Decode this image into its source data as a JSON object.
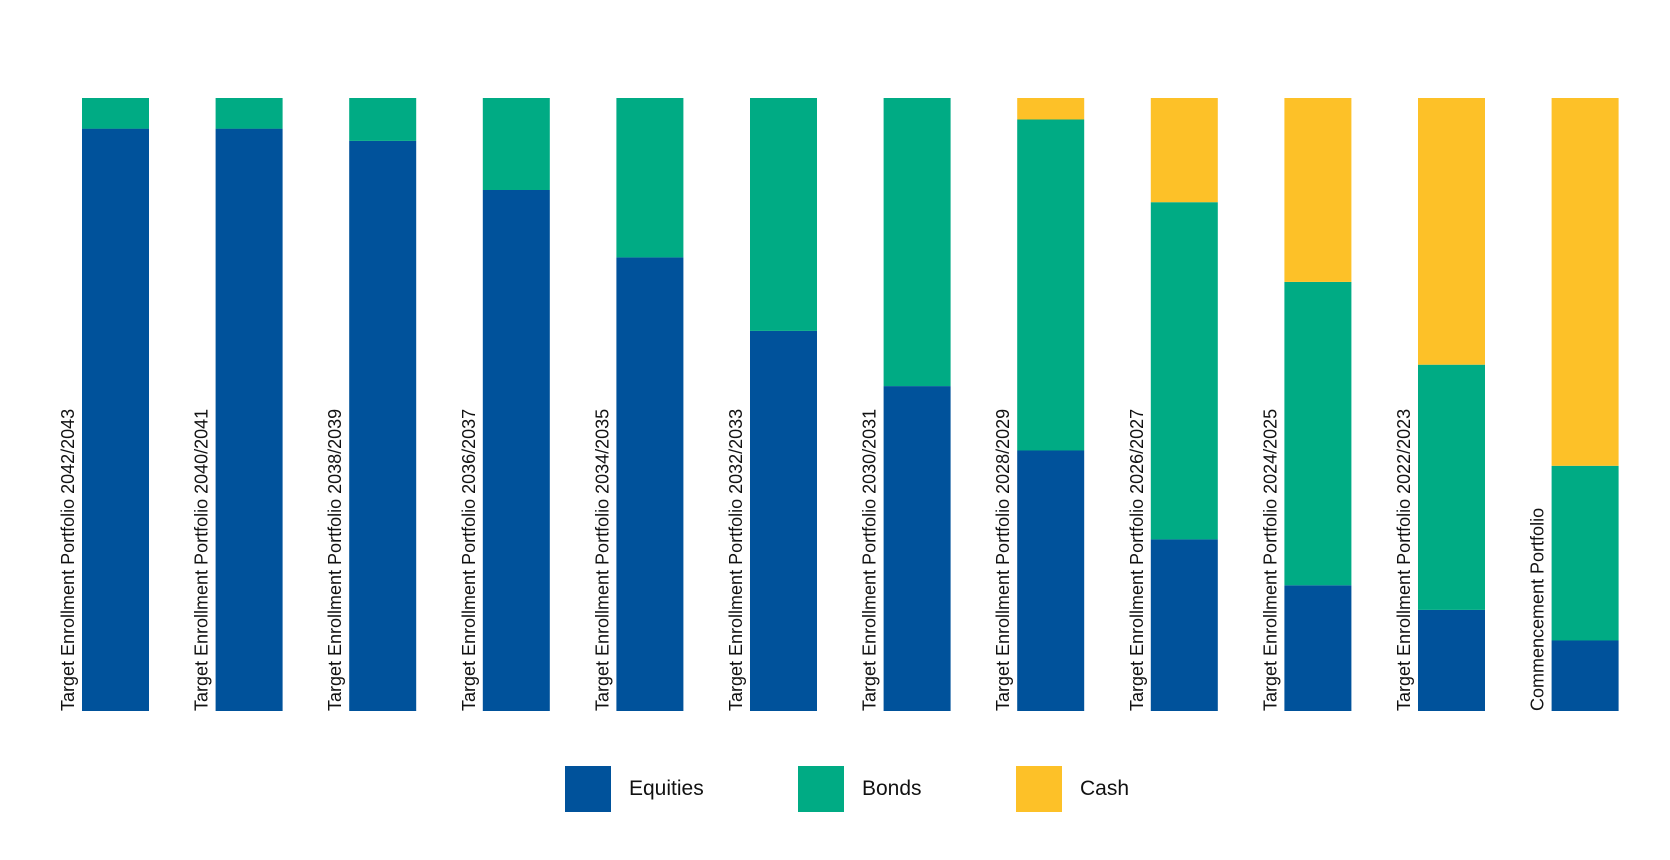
{
  "chart_data": {
    "type": "bar",
    "stacked": true,
    "normalized": true,
    "categories": [
      "Target Enrollment Portfolio 2042/2043",
      "Target Enrollment Portfolio 2040/2041",
      "Target Enrollment Portfolio 2038/2039",
      "Target Enrollment Portfolio 2036/2037",
      "Target Enrollment Portfolio 2034/2035",
      "Target Enrollment Portfolio 2032/2033",
      "Target Enrollment Portfolio 2030/2031",
      "Target Enrollment Portfolio 2028/2029",
      "Target Enrollment Portfolio 2026/2027",
      "Target Enrollment Portfolio 2024/2025",
      "Target Enrollment Portfolio 2022/2023",
      "Commencement Portfolio"
    ],
    "series": [
      {
        "name": "Equities",
        "color": "#00529B",
        "values": [
          95,
          95,
          93,
          85,
          74,
          62,
          53,
          42.5,
          28,
          20.5,
          16.5,
          11.5
        ]
      },
      {
        "name": "Bonds",
        "color": "#00AB84",
        "values": [
          5,
          5,
          7,
          15,
          26,
          38,
          47,
          54,
          55,
          49.5,
          40,
          28.5
        ]
      },
      {
        "name": "Cash",
        "color": "#FDC128",
        "values": [
          0,
          0,
          0,
          0,
          0,
          0,
          0,
          3.5,
          17,
          30,
          43.5,
          60
        ]
      }
    ],
    "ylim": [
      0,
      100
    ],
    "title": "",
    "xlabel": "",
    "ylabel": "",
    "grid": false,
    "legend_position": "bottom-center"
  }
}
